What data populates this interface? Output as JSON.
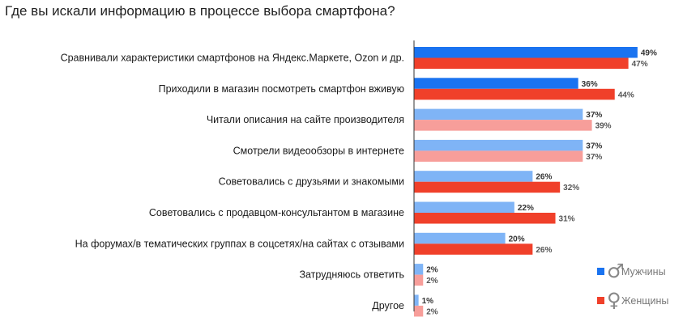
{
  "title": "Где вы искали информацию в процессе выбора смартфона?",
  "colors": {
    "men_strong": "#1a73f0",
    "men_light": "#7fb4f6",
    "women_strong": "#f0402a",
    "women_light": "#f79e9a",
    "axis": "#333333"
  },
  "chart_data": {
    "type": "bar",
    "orientation": "horizontal",
    "title": "Где вы искали информацию в процессе выбора смартфона?",
    "xlim": [
      0,
      50
    ],
    "unit": "%",
    "categories": [
      "Сравнивали характеристики смартфонов на Яндекс.Маркете, Ozon и др.",
      "Приходили в магазин посмотреть смартфон вживую",
      "Читали описания на сайте производителя",
      "Смотрели видеообзоры в интернете",
      "Советовались с друзьями и знакомыми",
      "Советовались с продавцом-консультантом  в магазине",
      "На форумах/в тематических группах в соцсетях/на сайтах с отзывами",
      "Затрудняюсь ответить",
      "Другое"
    ],
    "series": [
      {
        "name": "Мужчины",
        "values": [
          49,
          36,
          37,
          37,
          26,
          22,
          20,
          2,
          1
        ],
        "labels": [
          "49%",
          "36%",
          "37%",
          "37%",
          "26%",
          "22%",
          "20%",
          "2%",
          "1%"
        ]
      },
      {
        "name": "Женщины",
        "values": [
          47,
          44,
          39,
          37,
          32,
          31,
          26,
          2,
          2
        ],
        "labels": [
          "47%",
          "44%",
          "39%",
          "37%",
          "32%",
          "31%",
          "26%",
          "2%",
          "2%"
        ]
      }
    ],
    "highlighted_rows": [
      0,
      1
    ],
    "legend": {
      "placement": "bottom-right",
      "symbols": [
        "♂",
        "♀"
      ]
    }
  }
}
